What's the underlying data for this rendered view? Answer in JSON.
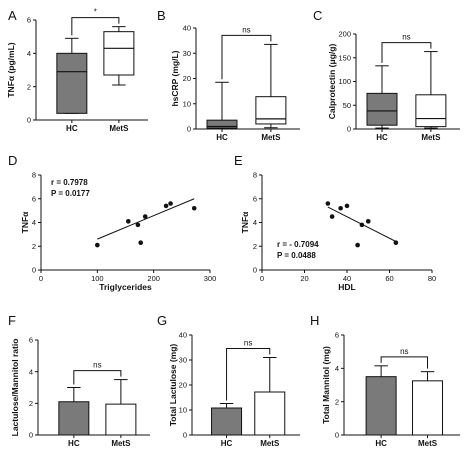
{
  "colors": {
    "hc_fill": "#7a7a7a",
    "mets_fill": "#ffffff",
    "stroke": "#111111"
  },
  "chart_data": [
    {
      "id": "A",
      "letter": "A",
      "type": "box",
      "ylabel": "TNFα (pg/mL)",
      "ylim": [
        0,
        6
      ],
      "yticks": [
        0,
        2,
        4,
        6
      ],
      "categories": [
        "HC",
        "MetS"
      ],
      "boxes": [
        {
          "category": "HC",
          "min": 0.4,
          "q1": 0.4,
          "median": 2.9,
          "q3": 4.0,
          "max": 4.9
        },
        {
          "category": "MetS",
          "min": 2.1,
          "q1": 2.7,
          "median": 4.3,
          "q3": 5.3,
          "max": 5.6
        }
      ],
      "significance": "*"
    },
    {
      "id": "B",
      "letter": "B",
      "type": "box",
      "ylabel": "hsCRP (mg/L)",
      "ylim": [
        0,
        40
      ],
      "yticks": [
        0,
        10,
        20,
        30,
        40
      ],
      "categories": [
        "HC",
        "MetS"
      ],
      "boxes": [
        {
          "category": "HC",
          "min": 0.0,
          "q1": 0.3,
          "median": 1.0,
          "q3": 3.5,
          "max": 18.5
        },
        {
          "category": "MetS",
          "min": 0.5,
          "q1": 2.0,
          "median": 4.0,
          "q3": 12.8,
          "max": 33.5
        }
      ],
      "significance": "ns"
    },
    {
      "id": "C",
      "letter": "C",
      "type": "box",
      "ylabel": "Calprotectin (μg/g)",
      "ylim": [
        0,
        200
      ],
      "yticks": [
        0,
        50,
        100,
        150,
        200
      ],
      "categories": [
        "HC",
        "MetS"
      ],
      "boxes": [
        {
          "category": "HC",
          "min": 2,
          "q1": 8,
          "median": 38,
          "q3": 75,
          "max": 133
        },
        {
          "category": "MetS",
          "min": 2,
          "q1": 5,
          "median": 22,
          "q3": 72,
          "max": 163
        }
      ],
      "significance": "ns"
    },
    {
      "id": "D",
      "letter": "D",
      "type": "scatter",
      "ylabel": "TNFα",
      "xlabel": "Triglycerides",
      "xlim": [
        0,
        300
      ],
      "xticks": [
        0,
        100,
        200,
        300
      ],
      "ylim": [
        0,
        8
      ],
      "yticks": [
        0,
        2,
        4,
        6,
        8
      ],
      "points": [
        [
          100,
          2.1
        ],
        [
          155,
          4.1
        ],
        [
          172,
          3.8
        ],
        [
          177,
          2.3
        ],
        [
          185,
          4.5
        ],
        [
          222,
          5.4
        ],
        [
          230,
          5.6
        ],
        [
          272,
          5.2
        ]
      ],
      "fit": [
        [
          100,
          2.6
        ],
        [
          272,
          6.0
        ]
      ],
      "r_text": "r = 0.7978",
      "p_text": "P = 0.0177"
    },
    {
      "id": "E",
      "letter": "E",
      "type": "scatter",
      "ylabel": "TNFα",
      "xlabel": "HDL",
      "xlim": [
        0,
        80
      ],
      "xticks": [
        0,
        20,
        40,
        60,
        80
      ],
      "ylim": [
        0,
        8
      ],
      "yticks": [
        0,
        2,
        4,
        6,
        8
      ],
      "points": [
        [
          31,
          5.6
        ],
        [
          33,
          4.5
        ],
        [
          37,
          5.2
        ],
        [
          40,
          5.4
        ],
        [
          45,
          2.1
        ],
        [
          47,
          3.8
        ],
        [
          50,
          4.1
        ],
        [
          63,
          2.3
        ]
      ],
      "fit": [
        [
          31,
          5.3
        ],
        [
          63,
          2.4
        ]
      ],
      "r_text": "r = - 0.7094",
      "p_text": "P = 0.0488"
    },
    {
      "id": "F",
      "letter": "F",
      "type": "bar",
      "ylabel": "Lactulose/Mannitol ratio",
      "ylim": [
        0,
        6
      ],
      "yticks": [
        0,
        2,
        4,
        6
      ],
      "categories": [
        "HC",
        "MetS"
      ],
      "bars": [
        {
          "category": "HC",
          "mean": 2.1,
          "err": 0.9
        },
        {
          "category": "MetS",
          "mean": 1.95,
          "err": 1.55
        }
      ],
      "significance": "ns"
    },
    {
      "id": "G",
      "letter": "G",
      "type": "bar",
      "ylabel": "Total Lactulose (mg)",
      "ylim": [
        0,
        40
      ],
      "yticks": [
        0,
        10,
        20,
        30,
        40
      ],
      "categories": [
        "HC",
        "MetS"
      ],
      "bars": [
        {
          "category": "HC",
          "mean": 10.8,
          "err": 1.8
        },
        {
          "category": "MetS",
          "mean": 17.2,
          "err": 13.8
        }
      ],
      "significance": "ns"
    },
    {
      "id": "H",
      "letter": "H",
      "type": "bar",
      "ylabel": "Total Mannitol (mg)",
      "ylim": [
        0,
        6
      ],
      "yticks": [
        0,
        2,
        4,
        6
      ],
      "categories": [
        "HC",
        "MetS"
      ],
      "bars": [
        {
          "category": "HC",
          "mean": 3.5,
          "err": 0.65
        },
        {
          "category": "MetS",
          "mean": 3.25,
          "err": 0.55
        }
      ],
      "significance": "ns"
    }
  ]
}
